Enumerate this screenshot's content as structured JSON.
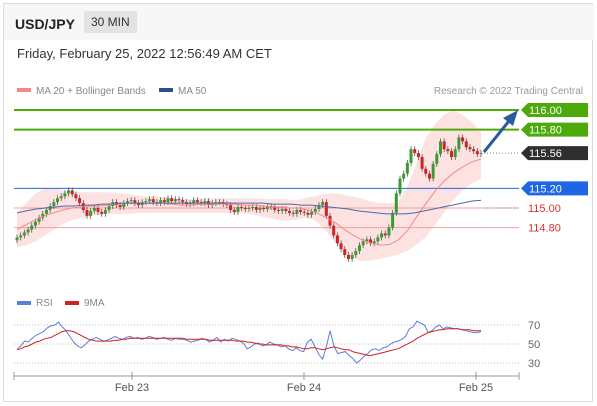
{
  "header": {
    "pair": "USD/JPY",
    "interval": "30 MIN"
  },
  "datetime": "Friday, February 25, 2022 12:56:49 AM CET",
  "credit": "Research © 2022 Trading Central",
  "chart_data": [
    {
      "type": "line",
      "title": "USD/JPY",
      "legend": [
        {
          "name": "MA 20 + Bollinger Bands",
          "color": "#f08a8a"
        },
        {
          "name": "MA 50",
          "color": "#2c4f8f"
        }
      ],
      "legend_placement": "top-left",
      "x_ticks": [
        "Feb 23",
        "Feb 24",
        "Feb 25"
      ],
      "ylim": [
        114.35,
        116.15
      ],
      "price_labels": [
        {
          "label": "116.00",
          "value": 116.0,
          "kind": "resistance",
          "color": "#4caa0b"
        },
        {
          "label": "115.80",
          "value": 115.8,
          "kind": "resistance",
          "color": "#4caa0b"
        },
        {
          "label": "115.56",
          "value": 115.56,
          "kind": "last",
          "color": "#2f2f2f"
        },
        {
          "label": "115.20",
          "value": 115.2,
          "kind": "pivot",
          "color": "#1f66e5"
        },
        {
          "label": "115.00",
          "value": 115.0,
          "kind": "support",
          "color": "#e03030"
        },
        {
          "label": "114.80",
          "value": 114.8,
          "kind": "support",
          "color": "#e03030"
        }
      ],
      "close": [
        114.7,
        114.72,
        114.75,
        114.78,
        114.82,
        114.86,
        114.9,
        114.94,
        114.98,
        115.02,
        115.06,
        115.1,
        115.12,
        115.15,
        115.18,
        115.14,
        115.1,
        115.05,
        114.98,
        114.92,
        114.97,
        115.0,
        114.96,
        114.94,
        114.98,
        115.02,
        115.06,
        115.03,
        115.01,
        115.05,
        115.07,
        115.08,
        115.05,
        115.03,
        115.06,
        115.07,
        115.09,
        115.06,
        115.05,
        115.08,
        115.06,
        115.1,
        115.07,
        115.09,
        115.08,
        115.06,
        115.04,
        115.05,
        115.08,
        115.06,
        115.05,
        115.07,
        115.03,
        115.05,
        115.06,
        115.06,
        115.04,
        115.03,
        114.98,
        114.96,
        115.01,
        115.0,
        114.99,
        115.0,
        115.01,
        114.98,
        115.0,
        114.99,
        115.02,
        115.01,
        114.98,
        114.97,
        114.99,
        114.97,
        114.95,
        114.94,
        114.98,
        114.96,
        114.95,
        114.93,
        114.96,
        114.99,
        115.03,
        115.06,
        114.92,
        114.82,
        114.72,
        114.64,
        114.58,
        114.52,
        114.48,
        114.52,
        114.56,
        114.62,
        114.66,
        114.68,
        114.64,
        114.66,
        114.7,
        114.74,
        114.72,
        114.8,
        114.95,
        115.15,
        115.3,
        115.35,
        115.46,
        115.6,
        115.56,
        115.52,
        115.4,
        115.35,
        115.3,
        115.45,
        115.55,
        115.68,
        115.6,
        115.58,
        115.52,
        115.6,
        115.72,
        115.68,
        115.62,
        115.6,
        115.58,
        115.55,
        115.56
      ],
      "ma20": [
        114.78,
        114.83,
        114.88,
        114.92,
        114.95,
        114.98,
        115.0,
        115.01,
        115.02,
        115.02,
        115.03,
        115.04,
        115.05,
        115.05,
        115.05,
        115.05,
        115.05,
        115.04,
        115.03,
        115.03,
        115.04,
        115.04,
        115.04,
        115.04,
        115.04,
        115.03,
        115.03,
        115.02,
        115.01,
        115.01,
        115.0,
        115.0,
        114.98,
        114.95,
        114.9,
        114.85,
        114.78,
        114.72,
        114.67,
        114.64,
        114.62,
        114.63,
        114.68,
        114.78,
        114.92,
        115.05,
        115.18,
        115.28,
        115.36,
        115.42,
        115.47,
        115.5
      ],
      "ma50": [
        114.95,
        114.97,
        114.99,
        115.0,
        115.01,
        115.02,
        115.02,
        115.03,
        115.03,
        115.04,
        115.04,
        115.05,
        115.05,
        115.05,
        115.05,
        115.05,
        115.05,
        115.05,
        115.05,
        115.05,
        115.05,
        115.05,
        115.05,
        115.05,
        115.05,
        115.05,
        115.05,
        115.04,
        115.04,
        115.04,
        115.03,
        115.03,
        115.02,
        115.01,
        115.0,
        114.99,
        114.97,
        114.96,
        114.95,
        114.94,
        114.94,
        114.94,
        114.95,
        114.97,
        114.99,
        115.01,
        115.03,
        115.05,
        115.07,
        115.08
      ],
      "bb_upper": [
        114.95,
        115.05,
        115.15,
        115.2,
        115.2,
        115.18,
        115.16,
        115.16,
        115.16,
        115.16,
        115.16,
        115.15,
        115.14,
        115.13,
        115.12,
        115.12,
        115.11,
        115.1,
        115.09,
        115.09,
        115.1,
        115.1,
        115.1,
        115.1,
        115.1,
        115.1,
        115.1,
        115.09,
        115.09,
        115.09,
        115.08,
        115.1,
        115.12,
        115.14,
        115.15,
        115.14,
        115.12,
        115.1,
        115.07,
        115.05,
        115.05,
        115.05,
        115.2,
        115.45,
        115.7,
        115.85,
        115.95,
        116.0,
        115.95,
        115.88,
        115.78
      ],
      "bb_lower": [
        114.6,
        114.62,
        114.66,
        114.72,
        114.78,
        114.84,
        114.88,
        114.9,
        114.92,
        114.93,
        114.94,
        114.94,
        114.94,
        114.95,
        114.95,
        114.95,
        114.95,
        114.95,
        114.95,
        114.95,
        114.95,
        114.95,
        114.95,
        114.95,
        114.95,
        114.94,
        114.92,
        114.9,
        114.88,
        114.87,
        114.88,
        114.9,
        114.88,
        114.8,
        114.68,
        114.58,
        114.5,
        114.46,
        114.46,
        114.48,
        114.5,
        114.52,
        114.56,
        114.62,
        114.7,
        114.82,
        114.95,
        115.08,
        115.18,
        115.25,
        115.3
      ]
    },
    {
      "type": "line",
      "title": "RSI",
      "legend": [
        {
          "name": "RSI",
          "color": "#5b7fd6"
        },
        {
          "name": "9MA",
          "color": "#d21f1f"
        }
      ],
      "legend_placement": "top-left",
      "y_ticks": [
        70,
        50,
        30
      ],
      "ylim": [
        25,
        78
      ],
      "rsi": [
        44,
        48,
        53,
        52,
        56,
        59,
        61,
        63,
        67,
        69,
        70,
        73,
        68,
        64,
        58,
        52,
        48,
        46,
        49,
        53,
        55,
        57,
        55,
        53,
        54,
        56,
        58,
        56,
        55,
        57,
        58,
        56,
        57,
        55,
        56,
        58,
        57,
        55,
        56,
        57,
        55,
        54,
        56,
        55,
        55,
        54,
        52,
        53,
        54,
        56,
        55,
        52,
        54,
        57,
        52,
        55,
        53,
        56,
        55,
        53,
        51,
        45,
        47,
        50,
        51,
        48,
        49,
        52,
        50,
        49,
        47,
        48,
        45,
        43,
        46,
        43,
        42,
        52,
        55,
        47,
        39,
        34,
        47,
        64,
        48,
        40,
        41,
        42,
        38,
        35,
        30,
        33,
        37,
        40,
        44,
        45,
        43,
        46,
        47,
        50,
        52,
        53,
        55,
        58,
        66,
        68,
        74,
        72,
        70,
        62,
        64,
        68,
        70,
        66,
        68,
        67,
        66,
        66,
        65,
        64,
        63,
        62,
        62,
        63
      ],
      "ma9": [
        44,
        45,
        47,
        48,
        50,
        52,
        53,
        55,
        56,
        57,
        59,
        61,
        63,
        64,
        64,
        63,
        61,
        59,
        57,
        55,
        54,
        53,
        53,
        53,
        53,
        53,
        54,
        54,
        55,
        55,
        56,
        56,
        56,
        56,
        56,
        56,
        56,
        56,
        56,
        56,
        56,
        56,
        56,
        56,
        56,
        55,
        55,
        55,
        55,
        55,
        55,
        54,
        54,
        54,
        54,
        54,
        54,
        54,
        53,
        53,
        53,
        52,
        52,
        51,
        50,
        50,
        49,
        49,
        49,
        49,
        49,
        48,
        48,
        47,
        47,
        46,
        45,
        45,
        46,
        46,
        45,
        44,
        45,
        46,
        47,
        46,
        45,
        44,
        44,
        42,
        41,
        40,
        39,
        38,
        38,
        39,
        40,
        41,
        42,
        43,
        44,
        45,
        47,
        49,
        51,
        53,
        56,
        58,
        60,
        62,
        63,
        64,
        65,
        65,
        66,
        66,
        66,
        66,
        65,
        65,
        65,
        64,
        64,
        64
      ]
    }
  ]
}
